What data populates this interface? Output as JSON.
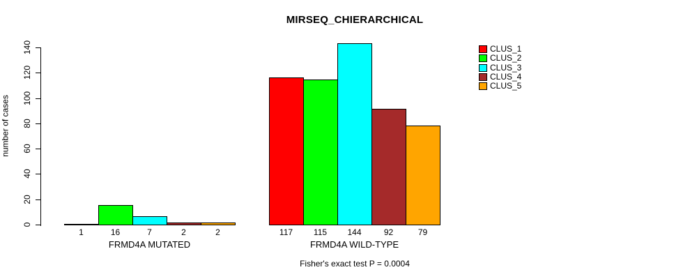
{
  "chart_data": {
    "type": "bar",
    "title": "MIRSEQ_CHIERARCHICAL",
    "ylabel": "number of cases",
    "ylim": [
      0,
      140
    ],
    "yticks": [
      0,
      20,
      40,
      60,
      80,
      100,
      120,
      140
    ],
    "grid": false,
    "legend_position": "top-right",
    "series": [
      {
        "name": "CLUS_1",
        "color": "#FF0000"
      },
      {
        "name": "CLUS_2",
        "color": "#00FF00"
      },
      {
        "name": "CLUS_3",
        "color": "#00FFFF"
      },
      {
        "name": "CLUS_4",
        "color": "#A52A2A"
      },
      {
        "name": "CLUS_5",
        "color": "#FFA500"
      }
    ],
    "groups": [
      {
        "label": "FRMD4A MUTATED",
        "values": [
          1,
          16,
          7,
          2,
          2
        ]
      },
      {
        "label": "FRMD4A WILD-TYPE",
        "values": [
          117,
          115,
          144,
          92,
          79
        ]
      }
    ],
    "bar_value_labels": [
      [
        "1",
        "16",
        "7",
        "2",
        "2"
      ],
      [
        "117",
        "115",
        "144",
        "92",
        "79"
      ]
    ],
    "caption": "Fisher's exact test P = 0.0004"
  }
}
